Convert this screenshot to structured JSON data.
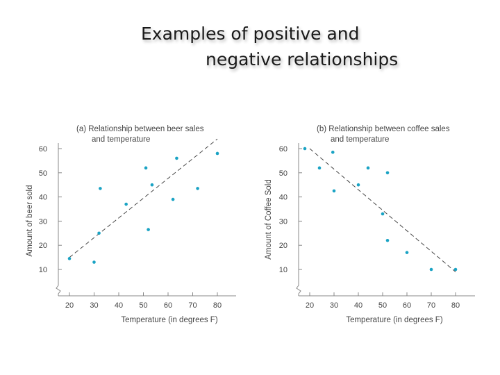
{
  "slide": {
    "title_line1": "Examples of positive and",
    "title_line2": "negative relationships"
  },
  "colors": {
    "point": "#1aa3c4",
    "axis": "#888888",
    "trend": "#444444",
    "text": "#444444"
  },
  "chart_data": [
    {
      "type": "scatter",
      "title_line1": "(a) Relationship between beer sales",
      "title_line2": "and temperature",
      "xlabel": "Temperature (in degrees F)",
      "ylabel": "Amount of beer sold",
      "xticks": [
        20,
        30,
        40,
        50,
        60,
        70,
        80
      ],
      "yticks": [
        10,
        20,
        30,
        40,
        50,
        60
      ],
      "points": [
        {
          "x": 20,
          "y": 14.5
        },
        {
          "x": 30,
          "y": 13
        },
        {
          "x": 32,
          "y": 25
        },
        {
          "x": 32.5,
          "y": 43.5
        },
        {
          "x": 43,
          "y": 37
        },
        {
          "x": 51,
          "y": 52
        },
        {
          "x": 52,
          "y": 26.5
        },
        {
          "x": 53.5,
          "y": 45
        },
        {
          "x": 62,
          "y": 39
        },
        {
          "x": 63.5,
          "y": 56
        },
        {
          "x": 72,
          "y": 43.5
        },
        {
          "x": 80,
          "y": 58
        }
      ],
      "trendline": [
        {
          "x": 20,
          "y": 15
        },
        {
          "x": 80,
          "y": 64
        }
      ]
    },
    {
      "type": "scatter",
      "title_line1": "(b) Relationship between coffee sales",
      "title_line2": "and temperature",
      "xlabel": "Temperature (in degrees F)",
      "ylabel": "Amount of Coffee Sold",
      "xticks": [
        20,
        30,
        40,
        50,
        60,
        70,
        80
      ],
      "yticks": [
        10,
        20,
        30,
        40,
        50,
        60
      ],
      "points": [
        {
          "x": 18,
          "y": 60
        },
        {
          "x": 24,
          "y": 52
        },
        {
          "x": 29.5,
          "y": 58.5
        },
        {
          "x": 30,
          "y": 42.5
        },
        {
          "x": 40,
          "y": 45
        },
        {
          "x": 44,
          "y": 52
        },
        {
          "x": 50,
          "y": 33
        },
        {
          "x": 52,
          "y": 50
        },
        {
          "x": 52,
          "y": 22
        },
        {
          "x": 60,
          "y": 17
        },
        {
          "x": 70,
          "y": 10
        },
        {
          "x": 80,
          "y": 10
        }
      ],
      "trendline": [
        {
          "x": 20,
          "y": 60
        },
        {
          "x": 80,
          "y": 9
        }
      ]
    }
  ]
}
